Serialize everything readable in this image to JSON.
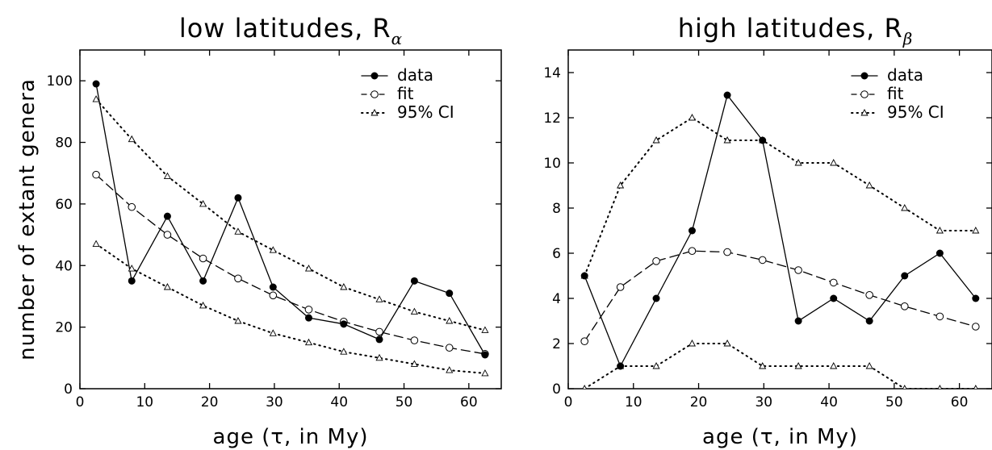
{
  "chart_data": [
    {
      "type": "line",
      "title": "low latitudes, R",
      "title_subscript": "α",
      "xlabel": "age (τ, in My)",
      "ylabel": "number of extant genera",
      "xlim": [
        0,
        65
      ],
      "ylim": [
        0,
        110
      ],
      "xticks": [
        0,
        10,
        20,
        30,
        40,
        50,
        60
      ],
      "yticks": [
        0,
        20,
        40,
        60,
        80,
        100
      ],
      "grid": false,
      "legend_position": "top-right",
      "x": [
        2.5,
        8.0,
        13.5,
        19.0,
        24.4,
        29.8,
        35.3,
        40.7,
        46.2,
        51.6,
        57.0,
        62.5
      ],
      "series": [
        {
          "name": "data",
          "style": "solid",
          "marker": "filled-circle",
          "values": [
            99,
            35,
            56,
            35,
            62,
            33,
            23,
            21,
            16,
            35,
            31,
            11
          ]
        },
        {
          "name": "fit",
          "style": "dashed",
          "marker": "open-circle",
          "values": [
            69.5,
            59,
            50,
            42.3,
            35.8,
            30.3,
            25.7,
            21.8,
            18.5,
            15.7,
            13.3,
            11.3
          ]
        },
        {
          "name": "95% CI",
          "style": "dotted",
          "marker": "open-triangle",
          "values": [
            94,
            81,
            69,
            60,
            51,
            45,
            39,
            33,
            29,
            25,
            22,
            19
          ]
        },
        {
          "name": "",
          "style": "dotted",
          "marker": "open-triangle",
          "values": [
            47,
            39,
            33,
            27,
            22,
            18,
            15,
            12,
            10,
            8,
            6,
            5
          ]
        }
      ]
    },
    {
      "type": "line",
      "title": "high latitudes, R",
      "title_subscript": "β",
      "xlabel": "age (τ, in My)",
      "ylabel": "",
      "xlim": [
        0,
        65
      ],
      "ylim": [
        0,
        15
      ],
      "xticks": [
        0,
        10,
        20,
        30,
        40,
        50,
        60
      ],
      "yticks": [
        0,
        2,
        4,
        6,
        8,
        10,
        12,
        14
      ],
      "grid": false,
      "legend_position": "top-right",
      "x": [
        2.5,
        8.0,
        13.5,
        19.0,
        24.4,
        29.8,
        35.3,
        40.7,
        46.2,
        51.6,
        57.0,
        62.5
      ],
      "series": [
        {
          "name": "data",
          "style": "solid",
          "marker": "filled-circle",
          "values": [
            5,
            1,
            4,
            7,
            13,
            11,
            3,
            4,
            3,
            5,
            6,
            4
          ]
        },
        {
          "name": "fit",
          "style": "dashed",
          "marker": "open-circle",
          "values": [
            2.1,
            4.5,
            5.65,
            6.1,
            6.05,
            5.7,
            5.25,
            4.7,
            4.15,
            3.65,
            3.2,
            2.75
          ]
        },
        {
          "name": "95% CI",
          "style": "dotted",
          "marker": "open-triangle",
          "values": [
            5,
            9,
            11,
            12,
            11,
            11,
            10,
            10,
            9,
            8,
            7,
            7
          ]
        },
        {
          "name": "",
          "style": "dotted",
          "marker": "open-triangle",
          "values": [
            0,
            1,
            1,
            2,
            2,
            1,
            1,
            1,
            1,
            0,
            0,
            0
          ]
        }
      ]
    }
  ]
}
